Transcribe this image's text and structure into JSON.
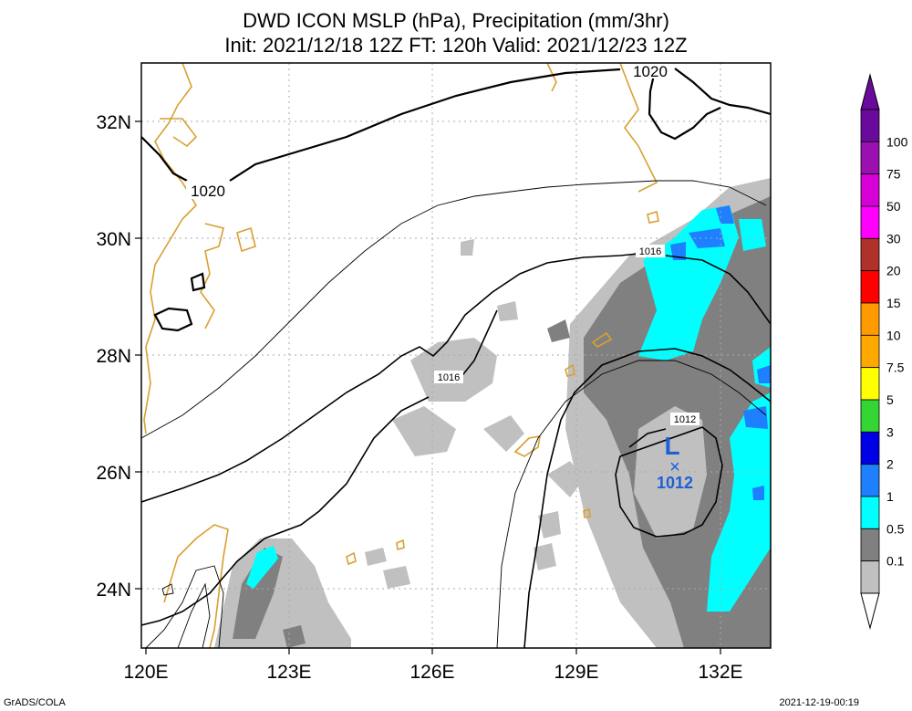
{
  "title_line1": "DWD ICON MSLP (hPa), Precipitation (mm/3hr)",
  "title_line2": "Init: 2021/12/18 12Z  FT: 120h  Valid: 2021/12/23 12Z",
  "axes": {
    "lat_ticks": [
      "32N",
      "30N",
      "28N",
      "26N",
      "24N"
    ],
    "lon_ticks": [
      "120E",
      "123E",
      "126E",
      "129E",
      "132E"
    ]
  },
  "isobar_labels": [
    "1020",
    "1020",
    "1016",
    "1016",
    "1012"
  ],
  "low": {
    "symbol": "L",
    "marker": "×",
    "pressure": "1012",
    "color": "#1f5fd6"
  },
  "colorbar": {
    "labels": [
      "100",
      "75",
      "50",
      "30",
      "20",
      "15",
      "10",
      "7.5",
      "5",
      "3",
      "2",
      "1",
      "0.5",
      "0.1"
    ],
    "colors": [
      "#6a0a9c",
      "#9a10b0",
      "#d800d8",
      "#ff00ff",
      "#b0302a",
      "#ff0000",
      "#ff9a00",
      "#ffa800",
      "#ffff00",
      "#33d633",
      "#0000e6",
      "#1e7fff",
      "#00ffff",
      "#808080",
      "#c0c0c0"
    ]
  },
  "colors": {
    "coast": "#d8a030",
    "precip_light": "#c0c0c0",
    "precip_mid": "#808080",
    "precip_1": "#00ffff",
    "precip_2": "#1e7fff",
    "precip_3": "#0000e6",
    "grid": "#aaaaaa"
  },
  "footer_left": "GrADS/COLA",
  "footer_right": "2021-12-19-00:19"
}
